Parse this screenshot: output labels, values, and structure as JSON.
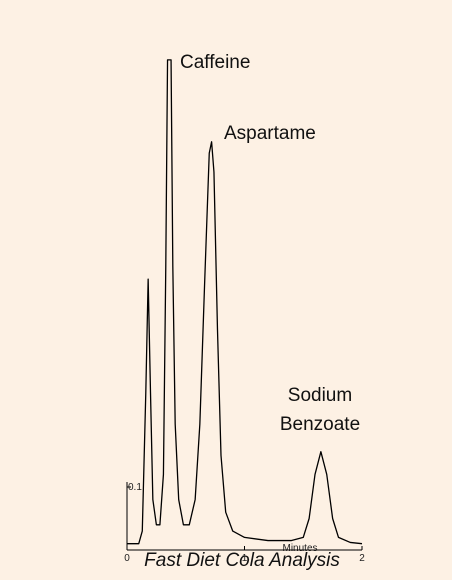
{
  "chart_data": {
    "type": "line",
    "title": "Fast Diet Cola Analysis",
    "x_label": "Minutes",
    "annotations": [
      [
        "Caffeine"
      ],
      [
        "Aspartame"
      ],
      [
        "Sodium",
        "Benzoate"
      ]
    ],
    "x": [
      0.0,
      0.1,
      0.13,
      0.16,
      0.18,
      0.2,
      0.22,
      0.25,
      0.28,
      0.31,
      0.33,
      0.345,
      0.375,
      0.39,
      0.41,
      0.44,
      0.48,
      0.53,
      0.58,
      0.62,
      0.66,
      0.7,
      0.72,
      0.74,
      0.77,
      0.8,
      0.84,
      0.9,
      1.0,
      1.2,
      1.4,
      1.5,
      1.55,
      1.6,
      1.65,
      1.7,
      1.75,
      1.8,
      1.9,
      2.0
    ],
    "series": [
      {
        "color": "#000000",
        "values": [
          0.01,
          0.01,
          0.03,
          0.25,
          0.43,
          0.25,
          0.08,
          0.04,
          0.04,
          0.12,
          0.45,
          0.778,
          0.778,
          0.45,
          0.2,
          0.08,
          0.04,
          0.04,
          0.08,
          0.2,
          0.42,
          0.63,
          0.648,
          0.6,
          0.35,
          0.15,
          0.06,
          0.03,
          0.02,
          0.015,
          0.015,
          0.02,
          0.05,
          0.12,
          0.156,
          0.12,
          0.05,
          0.02,
          0.012,
          0.01
        ]
      }
    ],
    "xlim": [
      0,
      2
    ],
    "xticks": [
      0,
      1,
      2
    ],
    "ylim": [
      0,
      0.8
    ],
    "yticks": [
      0.1
    ]
  }
}
